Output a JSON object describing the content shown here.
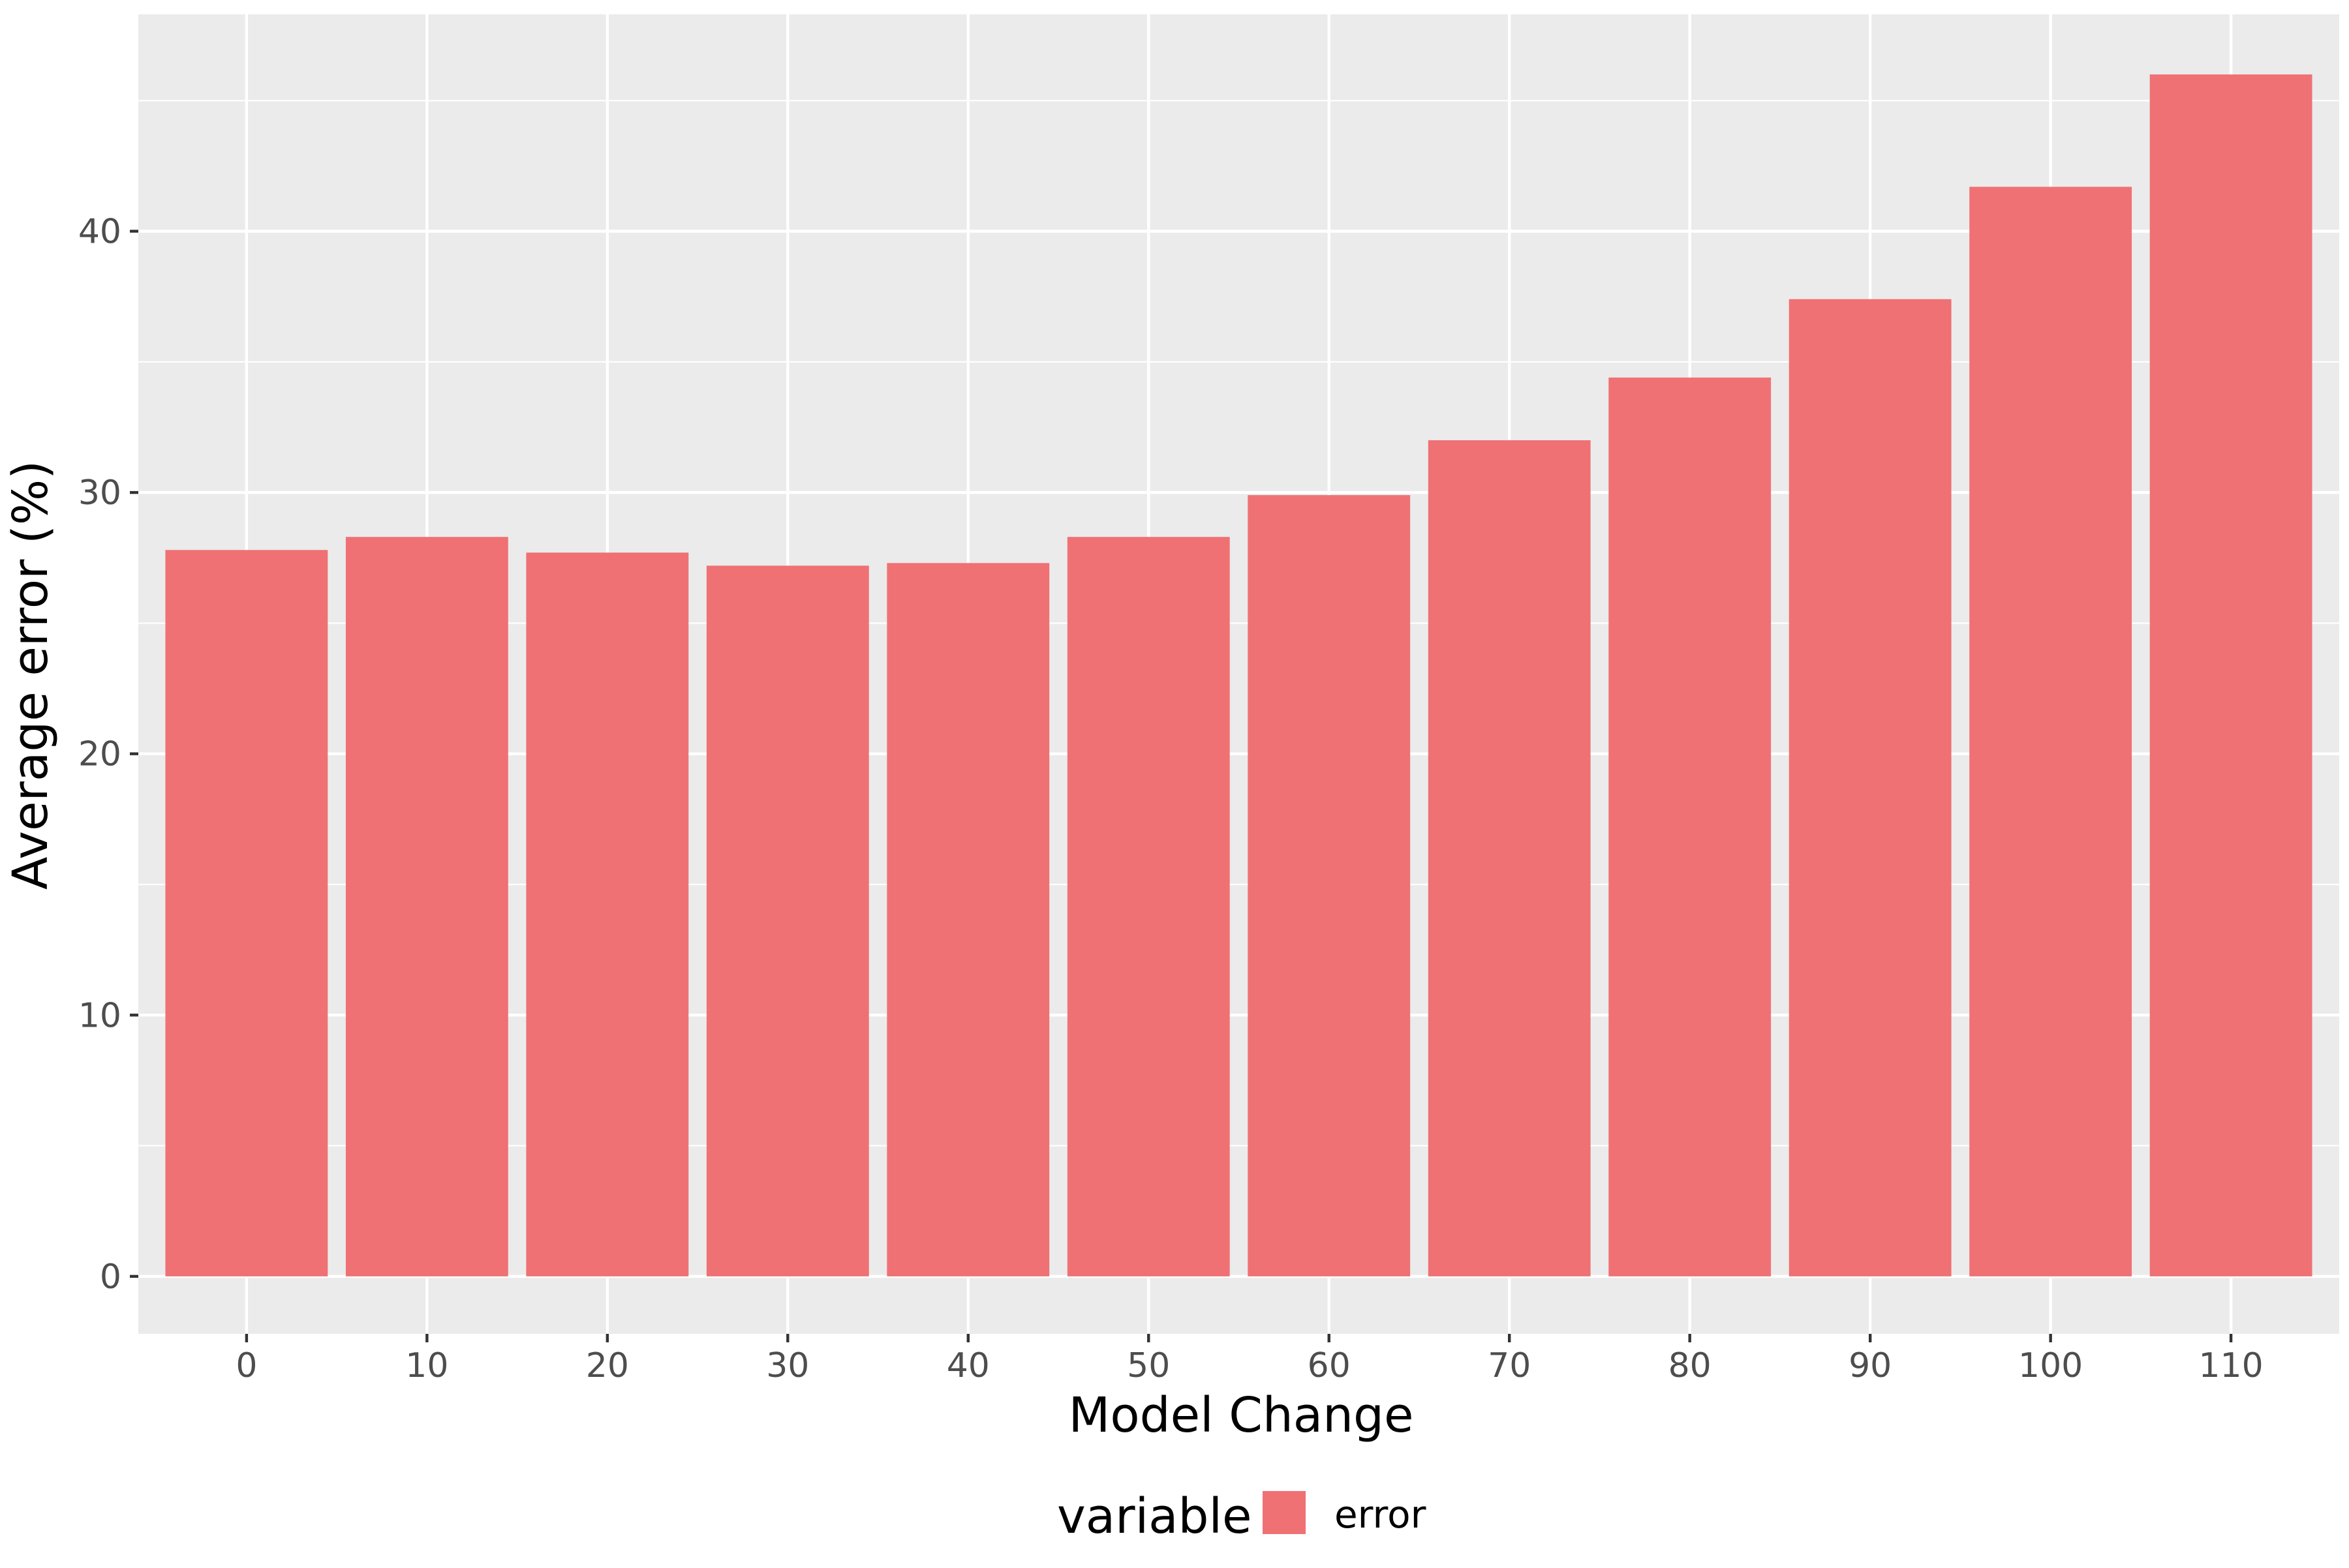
{
  "chart_data": {
    "type": "bar",
    "title": "",
    "xlabel": "Model Change",
    "ylabel": "Average error (%)",
    "categories": [
      "0",
      "10",
      "20",
      "30",
      "40",
      "50",
      "60",
      "70",
      "80",
      "90",
      "100",
      "110"
    ],
    "series": [
      {
        "name": "error",
        "color": "#ef7174",
        "values": [
          27.8,
          28.3,
          27.7,
          27.2,
          27.3,
          28.3,
          29.9,
          32.0,
          34.4,
          37.4,
          41.7,
          46.0
        ]
      }
    ],
    "yticks": [
      "0",
      "10",
      "20",
      "30",
      "40"
    ],
    "ylim": [
      -2.2,
      48.3
    ],
    "grid": true,
    "legend": {
      "title": "variable",
      "position": "bottom",
      "items": [
        "error"
      ]
    },
    "colors": {
      "panel_background": "#ebebeb",
      "grid": "#ffffff",
      "tick_label": "#4d4d4d",
      "bar": "#ef7174"
    }
  }
}
